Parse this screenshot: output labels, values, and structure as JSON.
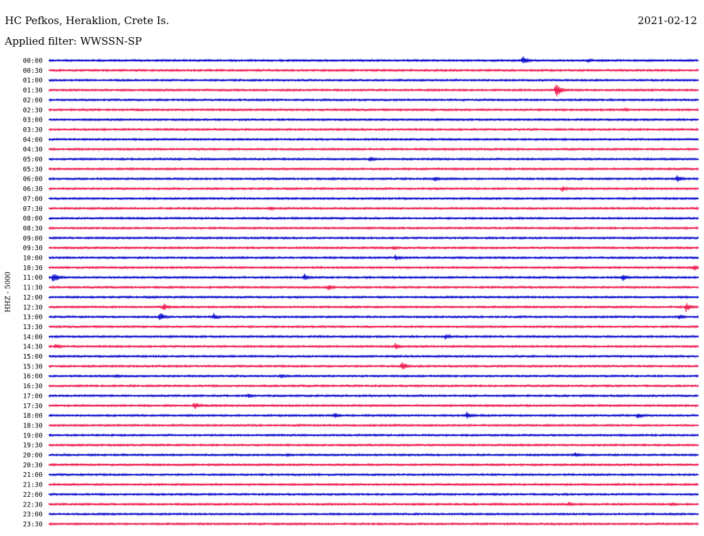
{
  "header": {
    "station": "HC Pefkos, Heraklion, Crete Is.",
    "date": "2021-02-12",
    "filter": "Applied filter: WWSSN-SP"
  },
  "chart_data": {
    "type": "line",
    "ylabel": "HHZ - 5000",
    "colors": [
      "#0000cc",
      "#ee1144"
    ],
    "rows": [
      "00:00",
      "00:30",
      "01:00",
      "01:30",
      "02:00",
      "02:30",
      "03:00",
      "03:30",
      "04:00",
      "04:30",
      "05:00",
      "05:30",
      "06:00",
      "06:30",
      "07:00",
      "07:30",
      "08:00",
      "08:30",
      "09:00",
      "09:30",
      "10:00",
      "10:30",
      "11:00",
      "11:30",
      "12:00",
      "12:30",
      "13:00",
      "13:30",
      "14:00",
      "14:30",
      "15:00",
      "15:30",
      "16:00",
      "16:30",
      "17:00",
      "17:30",
      "18:00",
      "18:30",
      "19:00",
      "19:30",
      "20:00",
      "20:30",
      "21:00",
      "21:30",
      "22:00",
      "22:30",
      "23:00",
      "23:30"
    ],
    "x_range_minutes": [
      0,
      30
    ],
    "events": [
      {
        "row": "00:00",
        "minute": 21.9,
        "amplitude": 8
      },
      {
        "row": "00:00",
        "minute": 24.9,
        "amplitude": 4
      },
      {
        "row": "01:30",
        "minute": 23.4,
        "amplitude": 13
      },
      {
        "row": "02:30",
        "minute": 26.6,
        "amplitude": 3
      },
      {
        "row": "05:00",
        "minute": 14.8,
        "amplitude": 5
      },
      {
        "row": "06:00",
        "minute": 17.8,
        "amplitude": 5
      },
      {
        "row": "06:00",
        "minute": 29.0,
        "amplitude": 7
      },
      {
        "row": "06:30",
        "minute": 23.7,
        "amplitude": 5
      },
      {
        "row": "07:30",
        "minute": 10.2,
        "amplitude": 4
      },
      {
        "row": "09:30",
        "minute": 15.9,
        "amplitude": 4
      },
      {
        "row": "10:00",
        "minute": 16.0,
        "amplitude": 5
      },
      {
        "row": "10:30",
        "minute": 29.8,
        "amplitude": 6
      },
      {
        "row": "11:00",
        "minute": 0.2,
        "amplitude": 10
      },
      {
        "row": "11:00",
        "minute": 11.8,
        "amplitude": 6
      },
      {
        "row": "11:00",
        "minute": 26.5,
        "amplitude": 6
      },
      {
        "row": "11:30",
        "minute": 12.9,
        "amplitude": 6
      },
      {
        "row": "12:30",
        "minute": 5.3,
        "amplitude": 6
      },
      {
        "row": "12:30",
        "minute": 29.4,
        "amplitude": 8
      },
      {
        "row": "13:00",
        "minute": 5.1,
        "amplitude": 8
      },
      {
        "row": "13:00",
        "minute": 7.6,
        "amplitude": 6
      },
      {
        "row": "13:00",
        "minute": 29.1,
        "amplitude": 5
      },
      {
        "row": "14:00",
        "minute": 18.3,
        "amplitude": 5
      },
      {
        "row": "14:30",
        "minute": 0.3,
        "amplitude": 5
      },
      {
        "row": "14:30",
        "minute": 16.0,
        "amplitude": 5
      },
      {
        "row": "15:30",
        "minute": 16.3,
        "amplitude": 7
      },
      {
        "row": "16:00",
        "minute": 3.1,
        "amplitude": 4
      },
      {
        "row": "16:00",
        "minute": 10.7,
        "amplitude": 4
      },
      {
        "row": "17:00",
        "minute": 9.2,
        "amplitude": 4
      },
      {
        "row": "17:30",
        "minute": 6.7,
        "amplitude": 7
      },
      {
        "row": "18:00",
        "minute": 13.2,
        "amplitude": 5
      },
      {
        "row": "18:00",
        "minute": 19.3,
        "amplitude": 6
      },
      {
        "row": "18:00",
        "minute": 27.2,
        "amplitude": 5
      },
      {
        "row": "20:00",
        "minute": 11.0,
        "amplitude": 3
      },
      {
        "row": "20:00",
        "minute": 24.3,
        "amplitude": 5
      },
      {
        "row": "22:30",
        "minute": 24.0,
        "amplitude": 4
      },
      {
        "row": "22:30",
        "minute": 28.7,
        "amplitude": 4
      }
    ]
  }
}
